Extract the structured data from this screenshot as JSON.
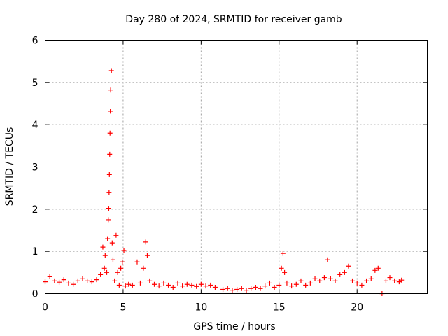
{
  "chart_data": {
    "type": "scatter",
    "title": "Day 280 of 2024, SRMTID for receiver gamb",
    "xlabel": "GPS time / hours",
    "ylabel": "SRMTID / TECUs",
    "xlim": [
      0,
      24.5
    ],
    "ylim": [
      0,
      6
    ],
    "xticks": [
      0,
      5,
      10,
      15,
      20
    ],
    "yticks": [
      0,
      1,
      2,
      3,
      4,
      5,
      6
    ],
    "xtick_labels": [
      "0",
      "5",
      "10",
      "15",
      "20"
    ],
    "ytick_labels": [
      "0",
      "1",
      "2",
      "3",
      "4",
      "5",
      "6"
    ],
    "grid": true,
    "marker": "+",
    "series": [
      {
        "name": "SRMTID",
        "color": "#ff0000",
        "x": [
          0.0,
          0.3,
          0.6,
          0.9,
          1.2,
          1.5,
          1.8,
          2.1,
          2.4,
          2.7,
          3.0,
          3.3,
          3.55,
          3.7,
          3.8,
          3.85,
          3.95,
          4.0,
          4.05,
          4.08,
          4.1,
          4.12,
          4.14,
          4.16,
          4.18,
          4.2,
          4.25,
          4.3,
          4.35,
          4.45,
          4.55,
          4.65,
          4.75,
          4.85,
          4.95,
          5.05,
          5.15,
          5.35,
          5.6,
          5.9,
          6.1,
          6.3,
          6.45,
          6.55,
          6.7,
          7.0,
          7.3,
          7.6,
          7.9,
          8.2,
          8.5,
          8.8,
          9.1,
          9.4,
          9.7,
          10.0,
          10.3,
          10.6,
          10.9,
          11.4,
          11.7,
          12.0,
          12.3,
          12.6,
          12.9,
          13.2,
          13.5,
          13.8,
          14.1,
          14.4,
          14.7,
          15.0,
          15.15,
          15.25,
          15.35,
          15.5,
          15.8,
          16.1,
          16.4,
          16.7,
          17.0,
          17.3,
          17.6,
          17.9,
          18.1,
          18.3,
          18.6,
          18.9,
          19.2,
          19.45,
          19.7,
          20.0,
          20.3,
          20.6,
          20.9,
          21.15,
          21.35,
          21.6,
          21.85,
          22.1,
          22.4,
          22.7,
          22.85
        ],
        "y": [
          0.28,
          0.4,
          0.3,
          0.27,
          0.33,
          0.25,
          0.22,
          0.3,
          0.35,
          0.3,
          0.28,
          0.33,
          0.45,
          1.1,
          0.6,
          0.9,
          0.5,
          1.3,
          1.75,
          2.02,
          2.4,
          2.82,
          3.3,
          3.8,
          4.32,
          4.82,
          5.28,
          1.2,
          0.8,
          0.3,
          1.38,
          0.5,
          0.2,
          0.6,
          0.75,
          1.02,
          0.18,
          0.22,
          0.2,
          0.75,
          0.25,
          0.6,
          1.22,
          0.9,
          0.3,
          0.22,
          0.18,
          0.25,
          0.2,
          0.15,
          0.25,
          0.18,
          0.22,
          0.2,
          0.17,
          0.22,
          0.18,
          0.2,
          0.15,
          0.1,
          0.12,
          0.08,
          0.1,
          0.12,
          0.08,
          0.12,
          0.15,
          0.12,
          0.18,
          0.25,
          0.15,
          0.2,
          0.6,
          0.95,
          0.5,
          0.25,
          0.18,
          0.22,
          0.3,
          0.2,
          0.25,
          0.35,
          0.3,
          0.38,
          0.8,
          0.35,
          0.3,
          0.45,
          0.5,
          0.65,
          0.3,
          0.25,
          0.2,
          0.3,
          0.35,
          0.55,
          0.6,
          0.0,
          0.3,
          0.38,
          0.3,
          0.28,
          0.32
        ]
      }
    ]
  }
}
